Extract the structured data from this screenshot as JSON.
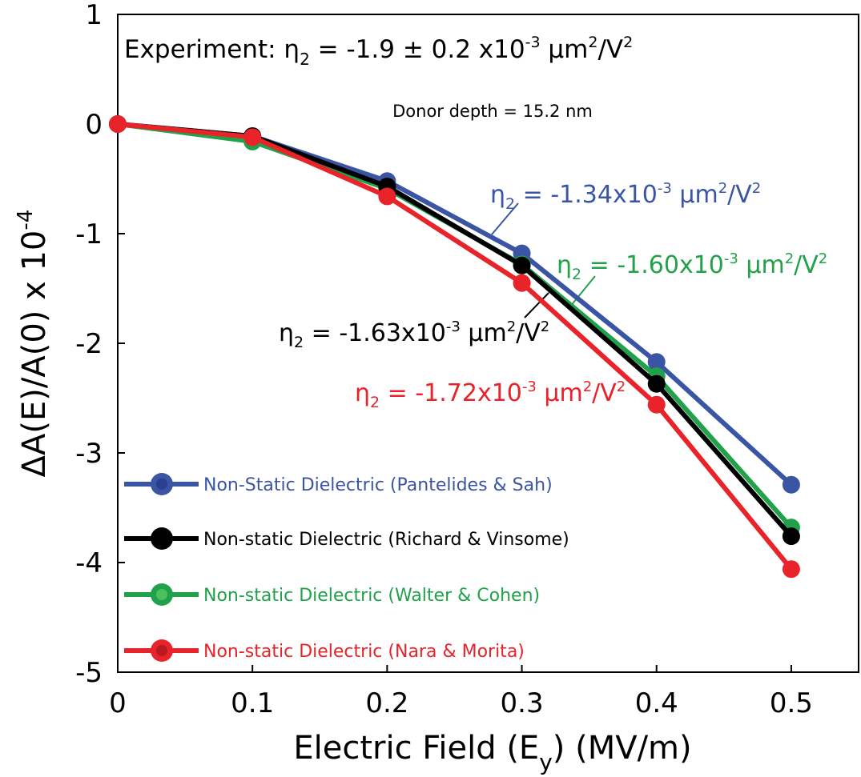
{
  "chart_data": {
    "type": "line",
    "title": "",
    "xlabel": {
      "main": "Electric Field (E",
      "sub": "y",
      "tail": ") (MV/m)"
    },
    "ylabel": {
      "main": "ΔA(E)/A(0)  x 10",
      "sup": "-4"
    },
    "xlim": [
      0,
      0.55
    ],
    "ylim": [
      -5,
      1
    ],
    "x_ticks": [
      0,
      0.1,
      0.2,
      0.3,
      0.4,
      0.5
    ],
    "x_tick_labels": [
      "0",
      "0.1",
      "0.2",
      "0.3",
      "0.4",
      "0.5"
    ],
    "y_ticks": [
      1,
      0,
      -1,
      -2,
      -3,
      -4,
      -5
    ],
    "y_tick_labels": [
      "1",
      "0",
      "-1",
      "-2",
      "-3",
      "-4",
      "-5"
    ],
    "grid": false,
    "legend_position": "bottom-left",
    "x": [
      0,
      0.1,
      0.2,
      0.3,
      0.4,
      0.5
    ],
    "series": [
      {
        "name": "Non-Static Dielectric (Pantelides & Sah)",
        "color": "#3a55a4",
        "values": [
          0,
          -0.11,
          -0.52,
          -1.18,
          -2.17,
          -3.29
        ]
      },
      {
        "name": "Non-static Dielectric (Richard & Vinsome)",
        "color": "#000000",
        "values": [
          0,
          -0.11,
          -0.57,
          -1.29,
          -2.37,
          -3.76
        ]
      },
      {
        "name": "Non-static Dielectric (Walter & Cohen)",
        "color": "#21a24a",
        "values": [
          0,
          -0.16,
          -0.59,
          -1.28,
          -2.3,
          -3.68
        ]
      },
      {
        "name": "Non-static Dielectric (Nara & Morita)",
        "color": "#e8232a",
        "values": [
          0,
          -0.12,
          -0.66,
          -1.45,
          -2.56,
          -4.06
        ]
      }
    ],
    "annotations": {
      "experiment": {
        "prefix": "Experiment: η",
        "sub": "2",
        "mid": " = -1.9 ± 0.2 x10",
        "sup": "-3",
        "unit": " μm",
        "unit_sup": "2",
        "tail": "/V",
        "tail_sup": "2"
      },
      "donor_depth": "Donor depth = 15.2 nm",
      "eta_labels": [
        {
          "series": 0,
          "color": "#3a55a4",
          "eta": "η",
          "sub": "2",
          "value": " = -1.34x10",
          "exp": "-3",
          "unit": " μm",
          "unit_sup": "2",
          "tail": "/V",
          "tail_sup": "2"
        },
        {
          "series": 2,
          "color": "#21a24a",
          "eta": "η",
          "sub": "2",
          "value": " = -1.60x10",
          "exp": "-3",
          "unit": " μm",
          "unit_sup": "2",
          "tail": "/V",
          "tail_sup": "2"
        },
        {
          "series": 1,
          "color": "#000000",
          "eta": "η",
          "sub": "2",
          "value": " = -1.63x10",
          "exp": "-3",
          "unit": " μm",
          "unit_sup": "2",
          "tail": "/V",
          "tail_sup": "2"
        },
        {
          "series": 3,
          "color": "#e8232a",
          "eta": "η",
          "sub": "2",
          "value": " = -1.72x10",
          "exp": "-3",
          "unit": " μm",
          "unit_sup": "2",
          "tail": "/V",
          "tail_sup": "2"
        }
      ]
    }
  }
}
